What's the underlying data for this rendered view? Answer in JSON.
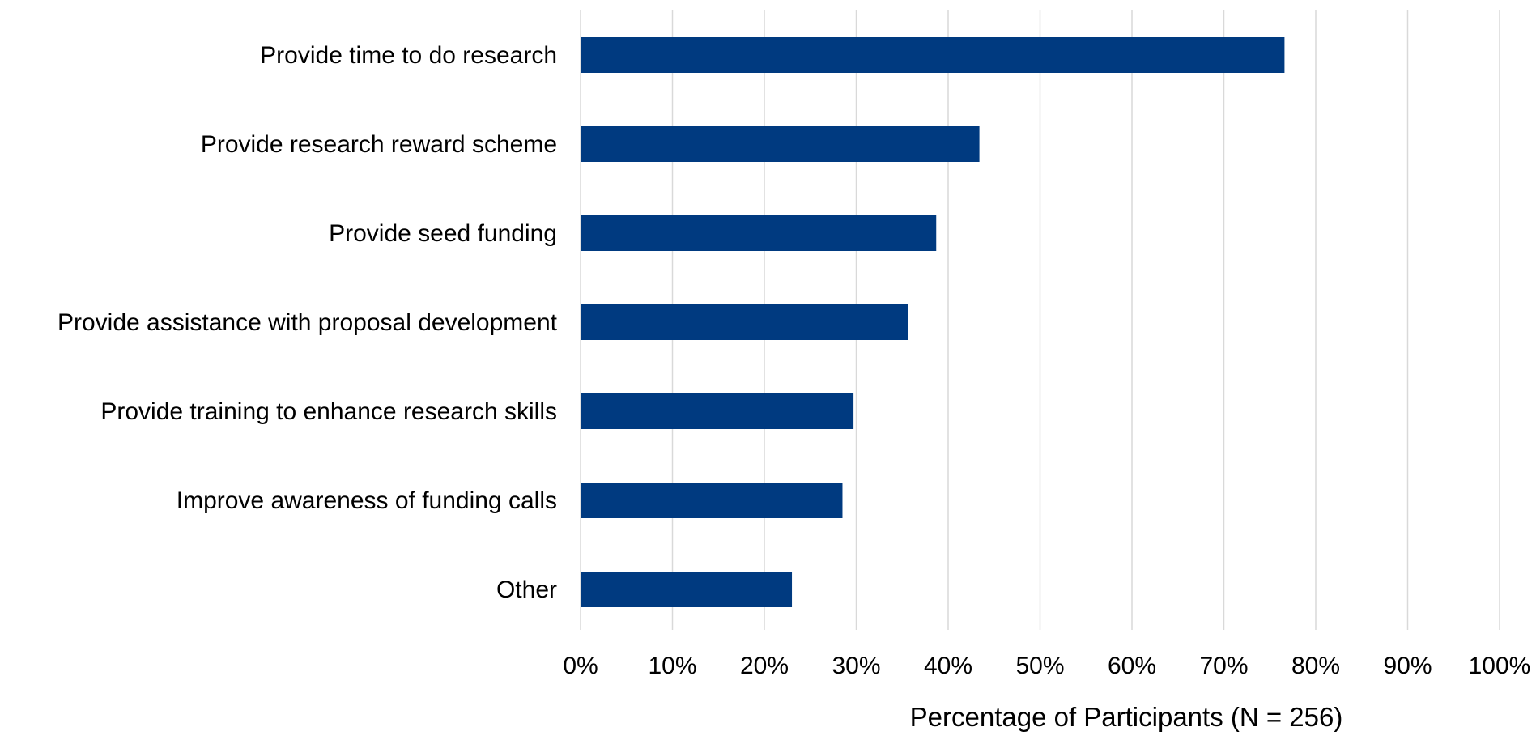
{
  "chart_data": {
    "type": "bar",
    "orientation": "horizontal",
    "categories": [
      "Provide time to do research",
      "Provide research reward scheme",
      "Provide seed funding",
      "Provide assistance with proposal development",
      "Provide training to enhance research skills",
      "Improve awareness of funding calls",
      "Other"
    ],
    "values": [
      76.6,
      43.4,
      38.7,
      35.6,
      29.7,
      28.5,
      23.0
    ],
    "title": "",
    "xlabel": "Percentage of Participants (N = 256)",
    "ylabel": "",
    "xlim": [
      0,
      100
    ],
    "x_ticks": [
      0,
      10,
      20,
      30,
      40,
      50,
      60,
      70,
      80,
      90,
      100
    ],
    "x_tick_labels": [
      "0%",
      "10%",
      "20%",
      "30%",
      "40%",
      "50%",
      "60%",
      "70%",
      "80%",
      "90%",
      "100%"
    ],
    "grid": "vertical",
    "legend": "none",
    "bar_color": "#003a80",
    "grid_color": "#d9d9d9"
  }
}
